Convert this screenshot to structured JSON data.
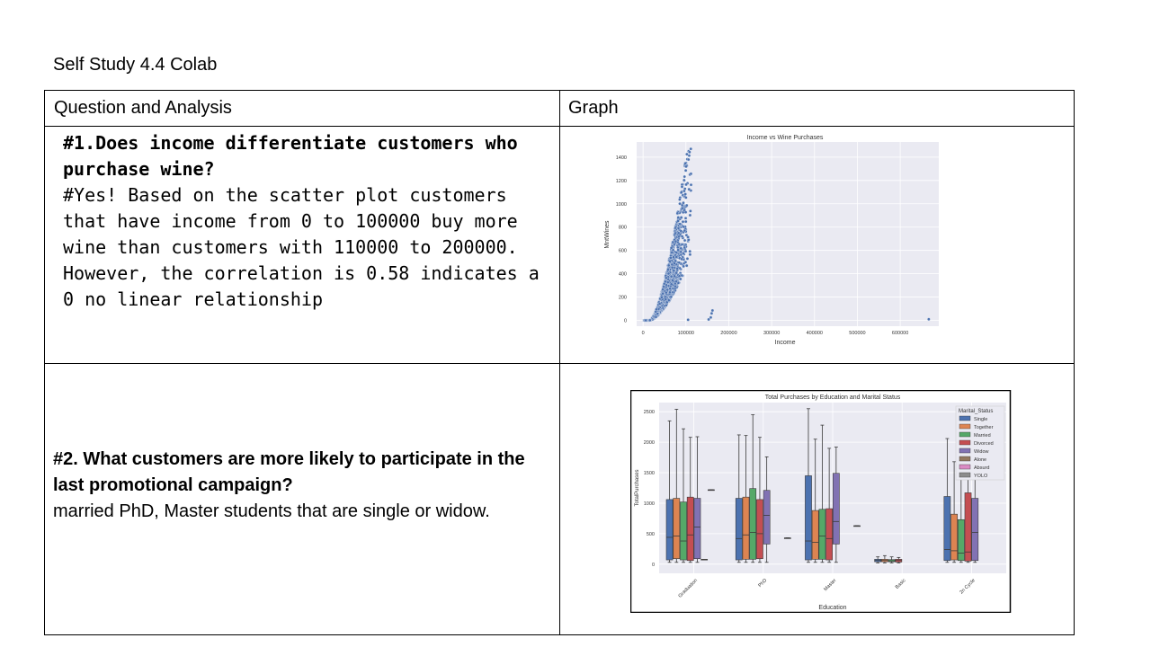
{
  "doc_title": "Self Study 4.4 Colab",
  "table": {
    "header_left": "Question and Analysis",
    "header_right": "Graph",
    "q1_question": "#1.Does income differentiate customers who purchase wine?",
    "q1_answer": "#Yes! Based on the scatter plot customers that have income from 0 to 100000 buy more wine than customers with 110000 to 200000. However, the correlation is 0.58 indicates a 0 no linear relationship",
    "q2_question": "#2. What customers are more likely to participate in the last promotional campaign?",
    "q2_answer": "married PhD, Master students that are single or widow."
  },
  "chart_data": [
    {
      "type": "scatter",
      "title": "Income vs Wine Purchases",
      "xlabel": "Income",
      "ylabel": "MntWines",
      "xlim": [
        -15000,
        690000
      ],
      "ylim": [
        -50,
        1530
      ],
      "xticks": [
        0,
        100000,
        200000,
        300000,
        400000,
        500000,
        600000
      ],
      "yticks": [
        0,
        200,
        400,
        600,
        800,
        1000,
        1200,
        1400
      ],
      "grid": true,
      "color": "#4c72b0",
      "background": "#eaeaf2"
    },
    {
      "type": "box",
      "title": "Total Purchases by Education and Marital Status",
      "xlabel": "Education",
      "ylabel": "TotalPurchases",
      "ylim": [
        -150,
        2650
      ],
      "yticks": [
        0,
        500,
        1000,
        1500,
        2000,
        2500
      ],
      "categories": [
        "Graduation",
        "PhD",
        "Master",
        "Basic",
        "2n Cycle"
      ],
      "legend_title": "Marital_Status",
      "legend_position": "top-right",
      "legend": [
        "Single",
        "Together",
        "Married",
        "Divorced",
        "Widow",
        "Alone",
        "Absurd",
        "YOLO"
      ],
      "colors": [
        "#4c72b0",
        "#dd8452",
        "#55a868",
        "#c44e52",
        "#8172b3",
        "#937860",
        "#da8bc3",
        "#8c8c8c"
      ],
      "series": [
        {
          "name": "Single",
          "stats": [
            [
              30,
              70,
              440,
              1060,
              2350
            ],
            [
              30,
              70,
              420,
              1080,
              2120
            ],
            [
              30,
              70,
              380,
              1450,
              2550
            ],
            [
              20,
              40,
              60,
              80,
              120
            ],
            [
              30,
              60,
              240,
              1110,
              2060
            ]
          ]
        },
        {
          "name": "Together",
          "stats": [
            [
              30,
              90,
              460,
              1080,
              2540
            ],
            [
              30,
              80,
              480,
              1100,
              2110
            ],
            [
              30,
              80,
              360,
              880,
              2050
            ],
            [
              20,
              40,
              60,
              80,
              140
            ],
            [
              30,
              70,
              220,
              820,
              1680
            ]
          ]
        },
        {
          "name": "Married",
          "stats": [
            [
              30,
              70,
              380,
              1020,
              2220
            ],
            [
              30,
              80,
              520,
              1240,
              2450
            ],
            [
              30,
              80,
              460,
              900,
              2280
            ],
            [
              20,
              40,
              55,
              75,
              120
            ],
            [
              30,
              60,
              180,
              730,
              2050
            ]
          ]
        },
        {
          "name": "Divorced",
          "stats": [
            [
              30,
              60,
              480,
              1100,
              2080
            ],
            [
              30,
              90,
              500,
              1060,
              2080
            ],
            [
              30,
              70,
              420,
              910,
              1900
            ],
            [
              20,
              35,
              60,
              80,
              110
            ],
            [
              30,
              50,
              200,
              1170,
              2220
            ]
          ]
        },
        {
          "name": "Widow",
          "stats": [
            [
              30,
              90,
              610,
              1080,
              2090
            ],
            [
              30,
              330,
              800,
              1210,
              1760
            ],
            [
              30,
              330,
              700,
              1490,
              1920
            ],
            [],
            [
              30,
              60,
              520,
              1080,
              1920
            ]
          ]
        },
        {
          "name": "Alone",
          "stats": [
            [
              80,
              80,
              80,
              80,
              80
            ],
            [],
            [],
            [],
            []
          ]
        },
        {
          "name": "Absurd",
          "stats": [
            [
              1220,
              1220,
              1220,
              1220,
              1220
            ],
            [],
            [],
            [],
            []
          ]
        },
        {
          "name": "YOLO",
          "stats": [
            [],
            [
              430,
              430,
              430,
              430,
              430
            ],
            [
              630,
              630,
              630,
              630,
              630
            ],
            [],
            []
          ]
        }
      ]
    }
  ]
}
